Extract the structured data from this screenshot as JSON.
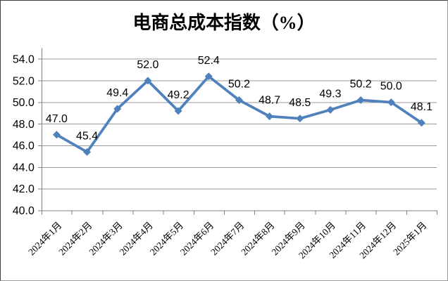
{
  "chart_data": {
    "type": "line",
    "title": "电商总成本指数（%）",
    "categories": [
      "2024年1月",
      "2024年2月",
      "2024年3月",
      "2024年4月",
      "2024年5月",
      "2024年6月",
      "2024年7月",
      "2024年8月",
      "2024年9月",
      "2024年10月",
      "2024年11月",
      "2024年12月",
      "2025年1月"
    ],
    "values": [
      47.0,
      45.4,
      49.4,
      52.0,
      49.2,
      52.4,
      50.2,
      48.7,
      48.5,
      49.3,
      50.2,
      50.0,
      48.1
    ],
    "data_labels": [
      "47.0",
      "45.4",
      "49.4",
      "52.0",
      "49.2",
      "52.4",
      "50.2",
      "48.7",
      "48.5",
      "49.3",
      "50.2",
      "50.0",
      "48.1"
    ],
    "xlabel": "",
    "ylabel": "",
    "ylim": [
      40,
      55
    ],
    "yticks": [
      54.0,
      52.0,
      50.0,
      48.0,
      46.0,
      44.0,
      42.0,
      40.0
    ],
    "ytick_decimals": 1,
    "grid": true,
    "legend": "none",
    "marker": "diamond",
    "colors": {
      "series": "#4F81BD",
      "grid": "#999999",
      "axis": "#808080",
      "text": "#000000",
      "background": "#FFFFFF"
    }
  }
}
